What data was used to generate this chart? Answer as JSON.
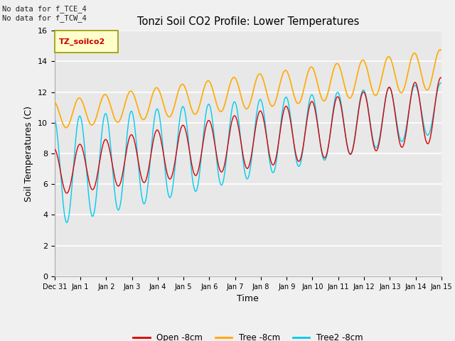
{
  "title": "Tonzi Soil CO2 Profile: Lower Temperatures",
  "xlabel": "Time",
  "ylabel": "Soil Temperatures (C)",
  "text_topleft": "No data for f_TCE_4\nNo data for f_TCW_4",
  "legend_label": "TZ_soilco2",
  "ylim": [
    0,
    16
  ],
  "yticks": [
    0,
    2,
    4,
    6,
    8,
    10,
    12,
    14,
    16
  ],
  "xtick_labels": [
    "Dec 31",
    "Jan 1",
    "Jan 2",
    "Jan 3",
    "Jan 4",
    "Jan 5",
    "Jan 6",
    "Jan 7",
    "Jan 8",
    "Jan 9",
    "Jan 10",
    "Jan 11",
    "Jan 12",
    "Jan 13",
    "Jan 14",
    "Jan 15"
  ],
  "series_labels": [
    "Open -8cm",
    "Tree -8cm",
    "Tree2 -8cm"
  ],
  "colors": [
    "#dd0000",
    "#ffaa00",
    "#00ccee"
  ],
  "bg_color": "#e8e8e8",
  "fig_bg_color": "#f0f0f0",
  "grid_color": "#ffffff"
}
